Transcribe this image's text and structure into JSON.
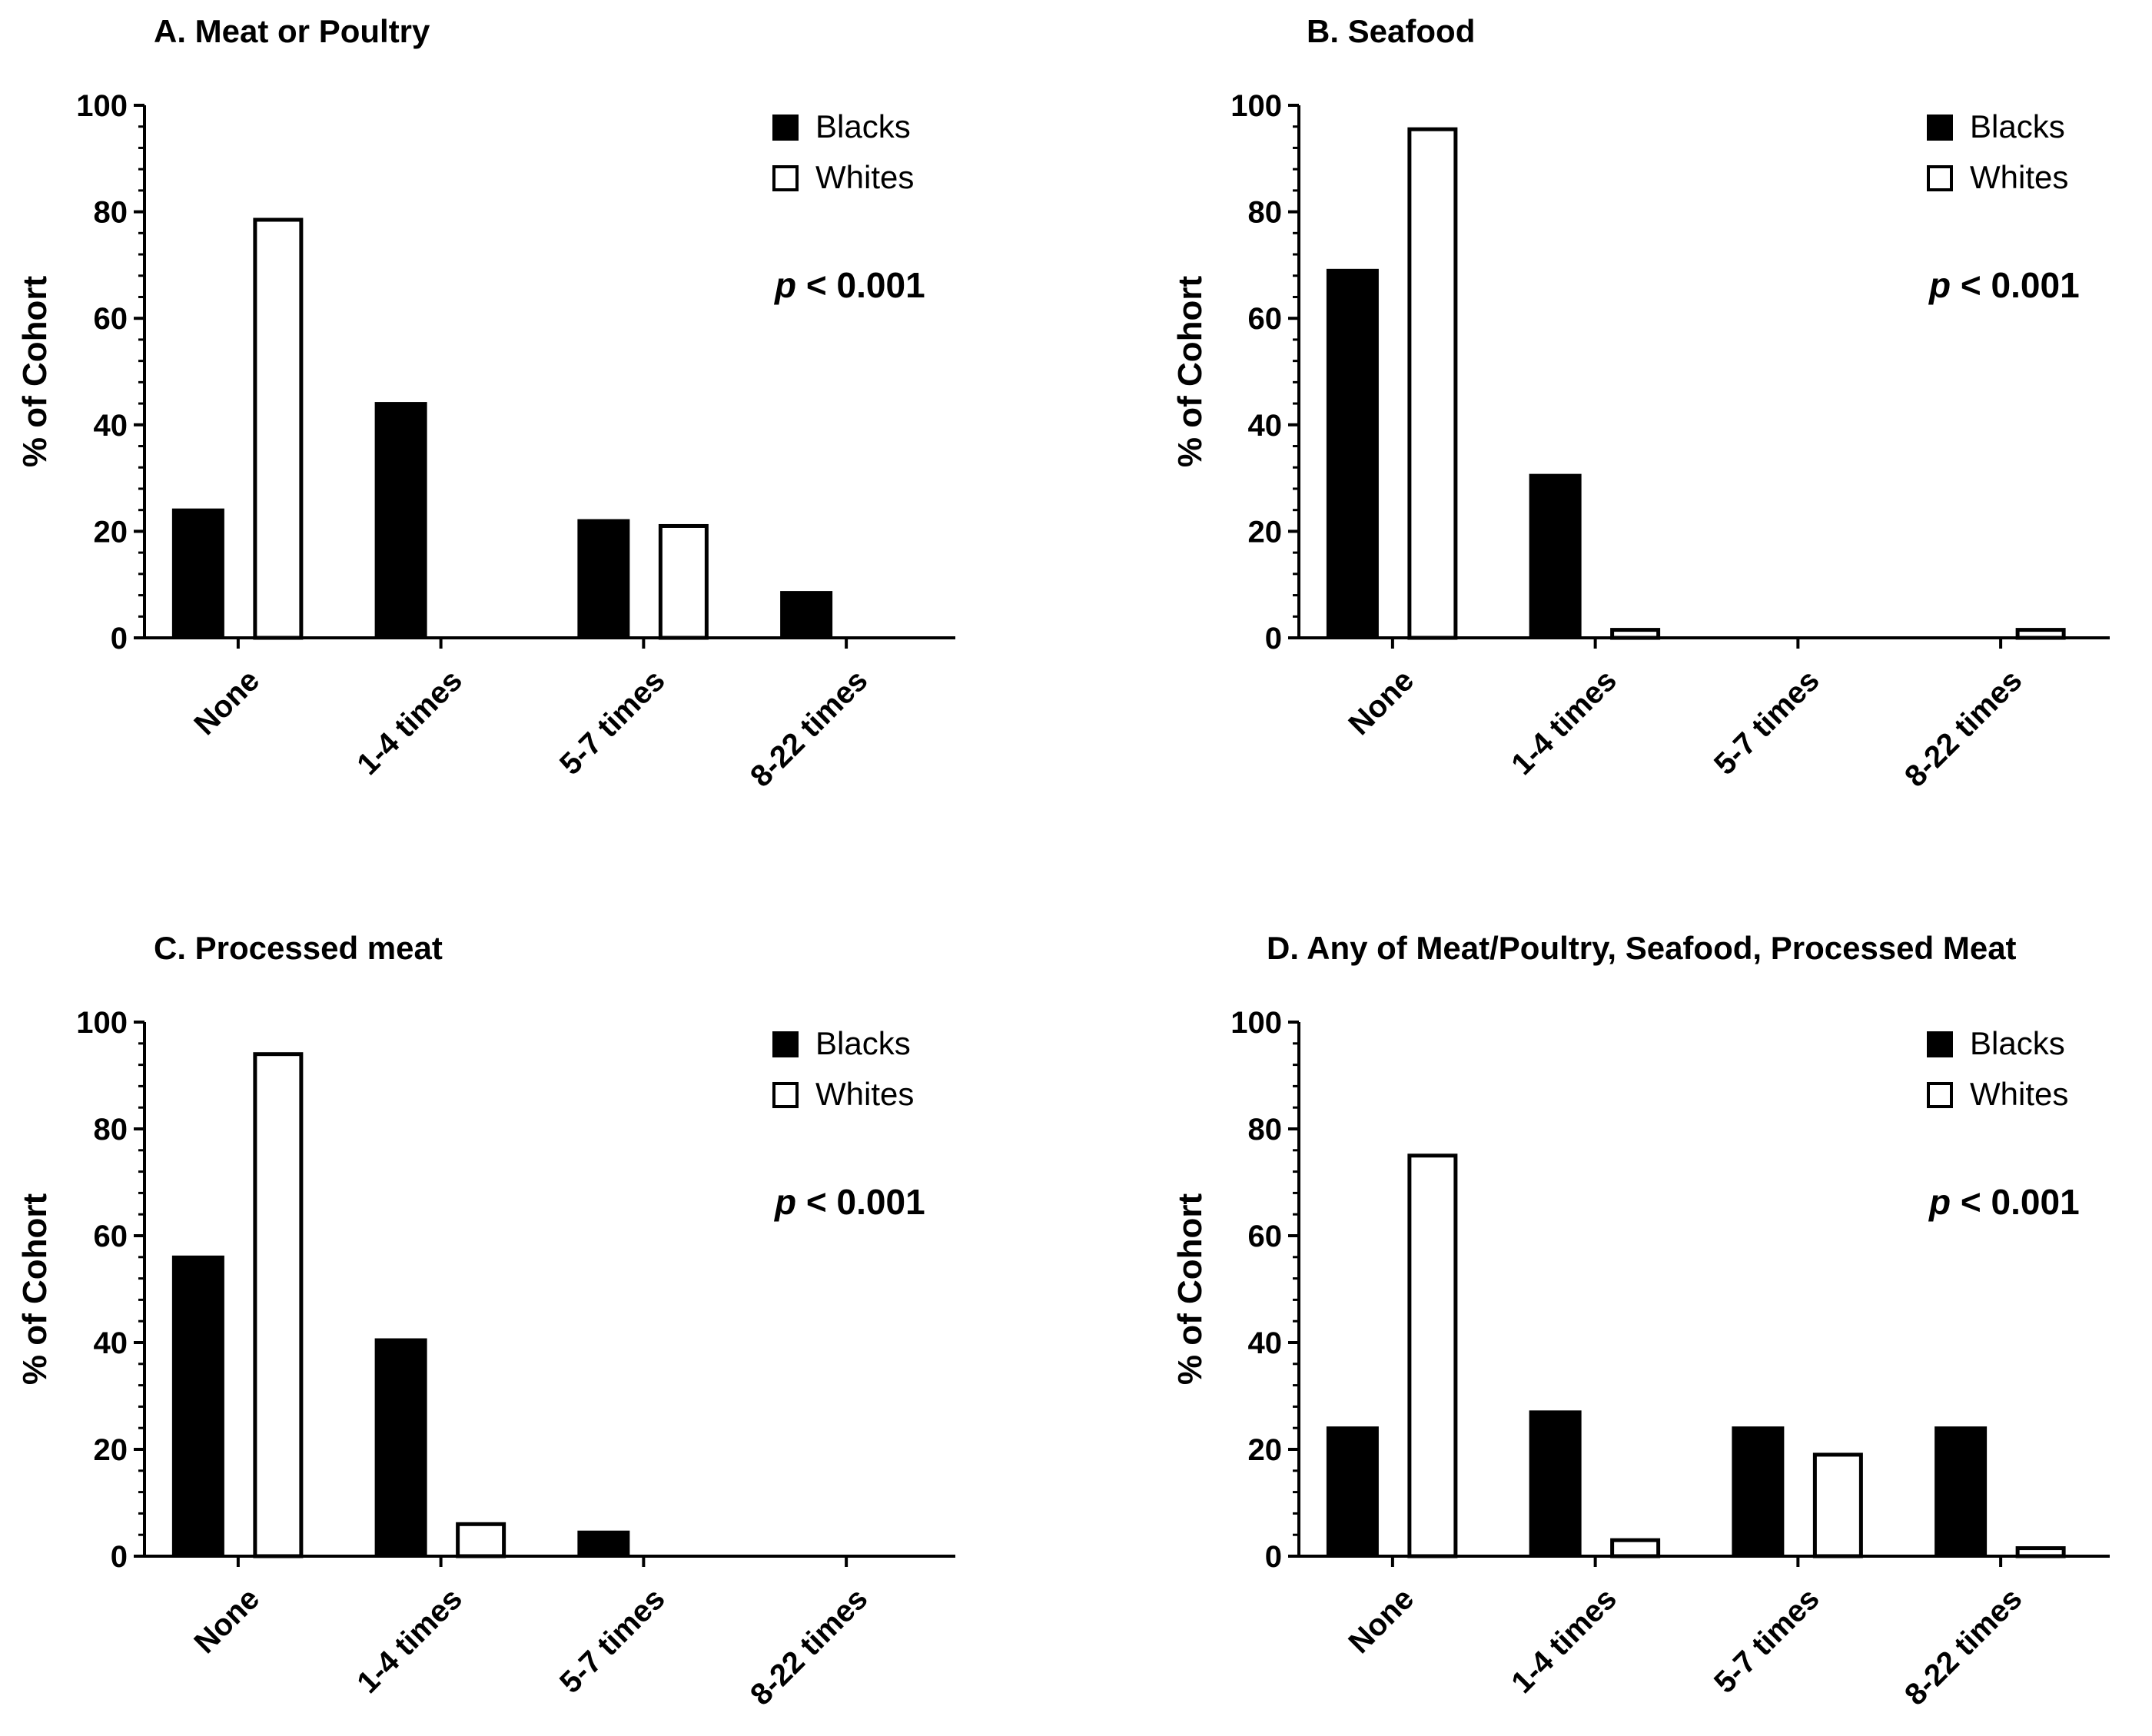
{
  "colors": {
    "blacks": "#000000",
    "whites": "#ffffff",
    "outline": "#000000"
  },
  "chart_data": [
    {
      "type": "bar",
      "title": "A. Meat or Poultry",
      "ylabel": "% of Cohort",
      "xlabel": "",
      "ylim": [
        0,
        100
      ],
      "yticks": [
        "0",
        "20",
        "40",
        "60",
        "80",
        "100"
      ],
      "categories": [
        "None",
        "1-4 times",
        "5-7 times",
        "8-22 times"
      ],
      "series": [
        {
          "name": "Blacks",
          "values": [
            24,
            44,
            22,
            8.5
          ]
        },
        {
          "name": "Whites",
          "values": [
            78.5,
            0,
            21,
            0
          ]
        }
      ],
      "legend": [
        "Blacks",
        "Whites"
      ],
      "legend_position": "top-right",
      "annotation": {
        "p": "p",
        "rest": " < 0.001"
      }
    },
    {
      "type": "bar",
      "title": "B. Seafood",
      "ylabel": "% of Cohort",
      "xlabel": "",
      "ylim": [
        0,
        100
      ],
      "yticks": [
        "0",
        "20",
        "40",
        "60",
        "80",
        "100"
      ],
      "categories": [
        "None",
        "1-4 times",
        "5-7 times",
        "8-22 times"
      ],
      "series": [
        {
          "name": "Blacks",
          "values": [
            69,
            30.5,
            0,
            0
          ]
        },
        {
          "name": "Whites",
          "values": [
            95.5,
            1.5,
            0,
            1.5
          ]
        }
      ],
      "legend": [
        "Blacks",
        "Whites"
      ],
      "legend_position": "top-right",
      "annotation": {
        "p": "p",
        "rest": " < 0.001"
      }
    },
    {
      "type": "bar",
      "title": "C. Processed meat",
      "ylabel": "% of Cohort",
      "xlabel": "",
      "ylim": [
        0,
        100
      ],
      "yticks": [
        "0",
        "20",
        "40",
        "60",
        "80",
        "100"
      ],
      "categories": [
        "None",
        "1-4 times",
        "5-7 times",
        "8-22 times"
      ],
      "series": [
        {
          "name": "Blacks",
          "values": [
            56,
            40.5,
            4.5,
            0
          ]
        },
        {
          "name": "Whites",
          "values": [
            94,
            6,
            0,
            0
          ]
        }
      ],
      "legend": [
        "Blacks",
        "Whites"
      ],
      "legend_position": "top-right",
      "annotation": {
        "p": "p",
        "rest": " < 0.001"
      }
    },
    {
      "type": "bar",
      "title": "D. Any of Meat/Poultry, Seafood, Processed Meat",
      "ylabel": "% of Cohort",
      "xlabel": "",
      "ylim": [
        0,
        100
      ],
      "yticks": [
        "0",
        "20",
        "40",
        "60",
        "80",
        "100"
      ],
      "categories": [
        "None",
        "1-4 times",
        "5-7 times",
        "8-22 times"
      ],
      "series": [
        {
          "name": "Blacks",
          "values": [
            24,
            27,
            24,
            24
          ]
        },
        {
          "name": "Whites",
          "values": [
            75,
            3,
            19,
            1.5
          ]
        }
      ],
      "legend": [
        "Blacks",
        "Whites"
      ],
      "legend_position": "top-right",
      "annotation": {
        "p": "p",
        "rest": " < 0.001"
      }
    }
  ]
}
